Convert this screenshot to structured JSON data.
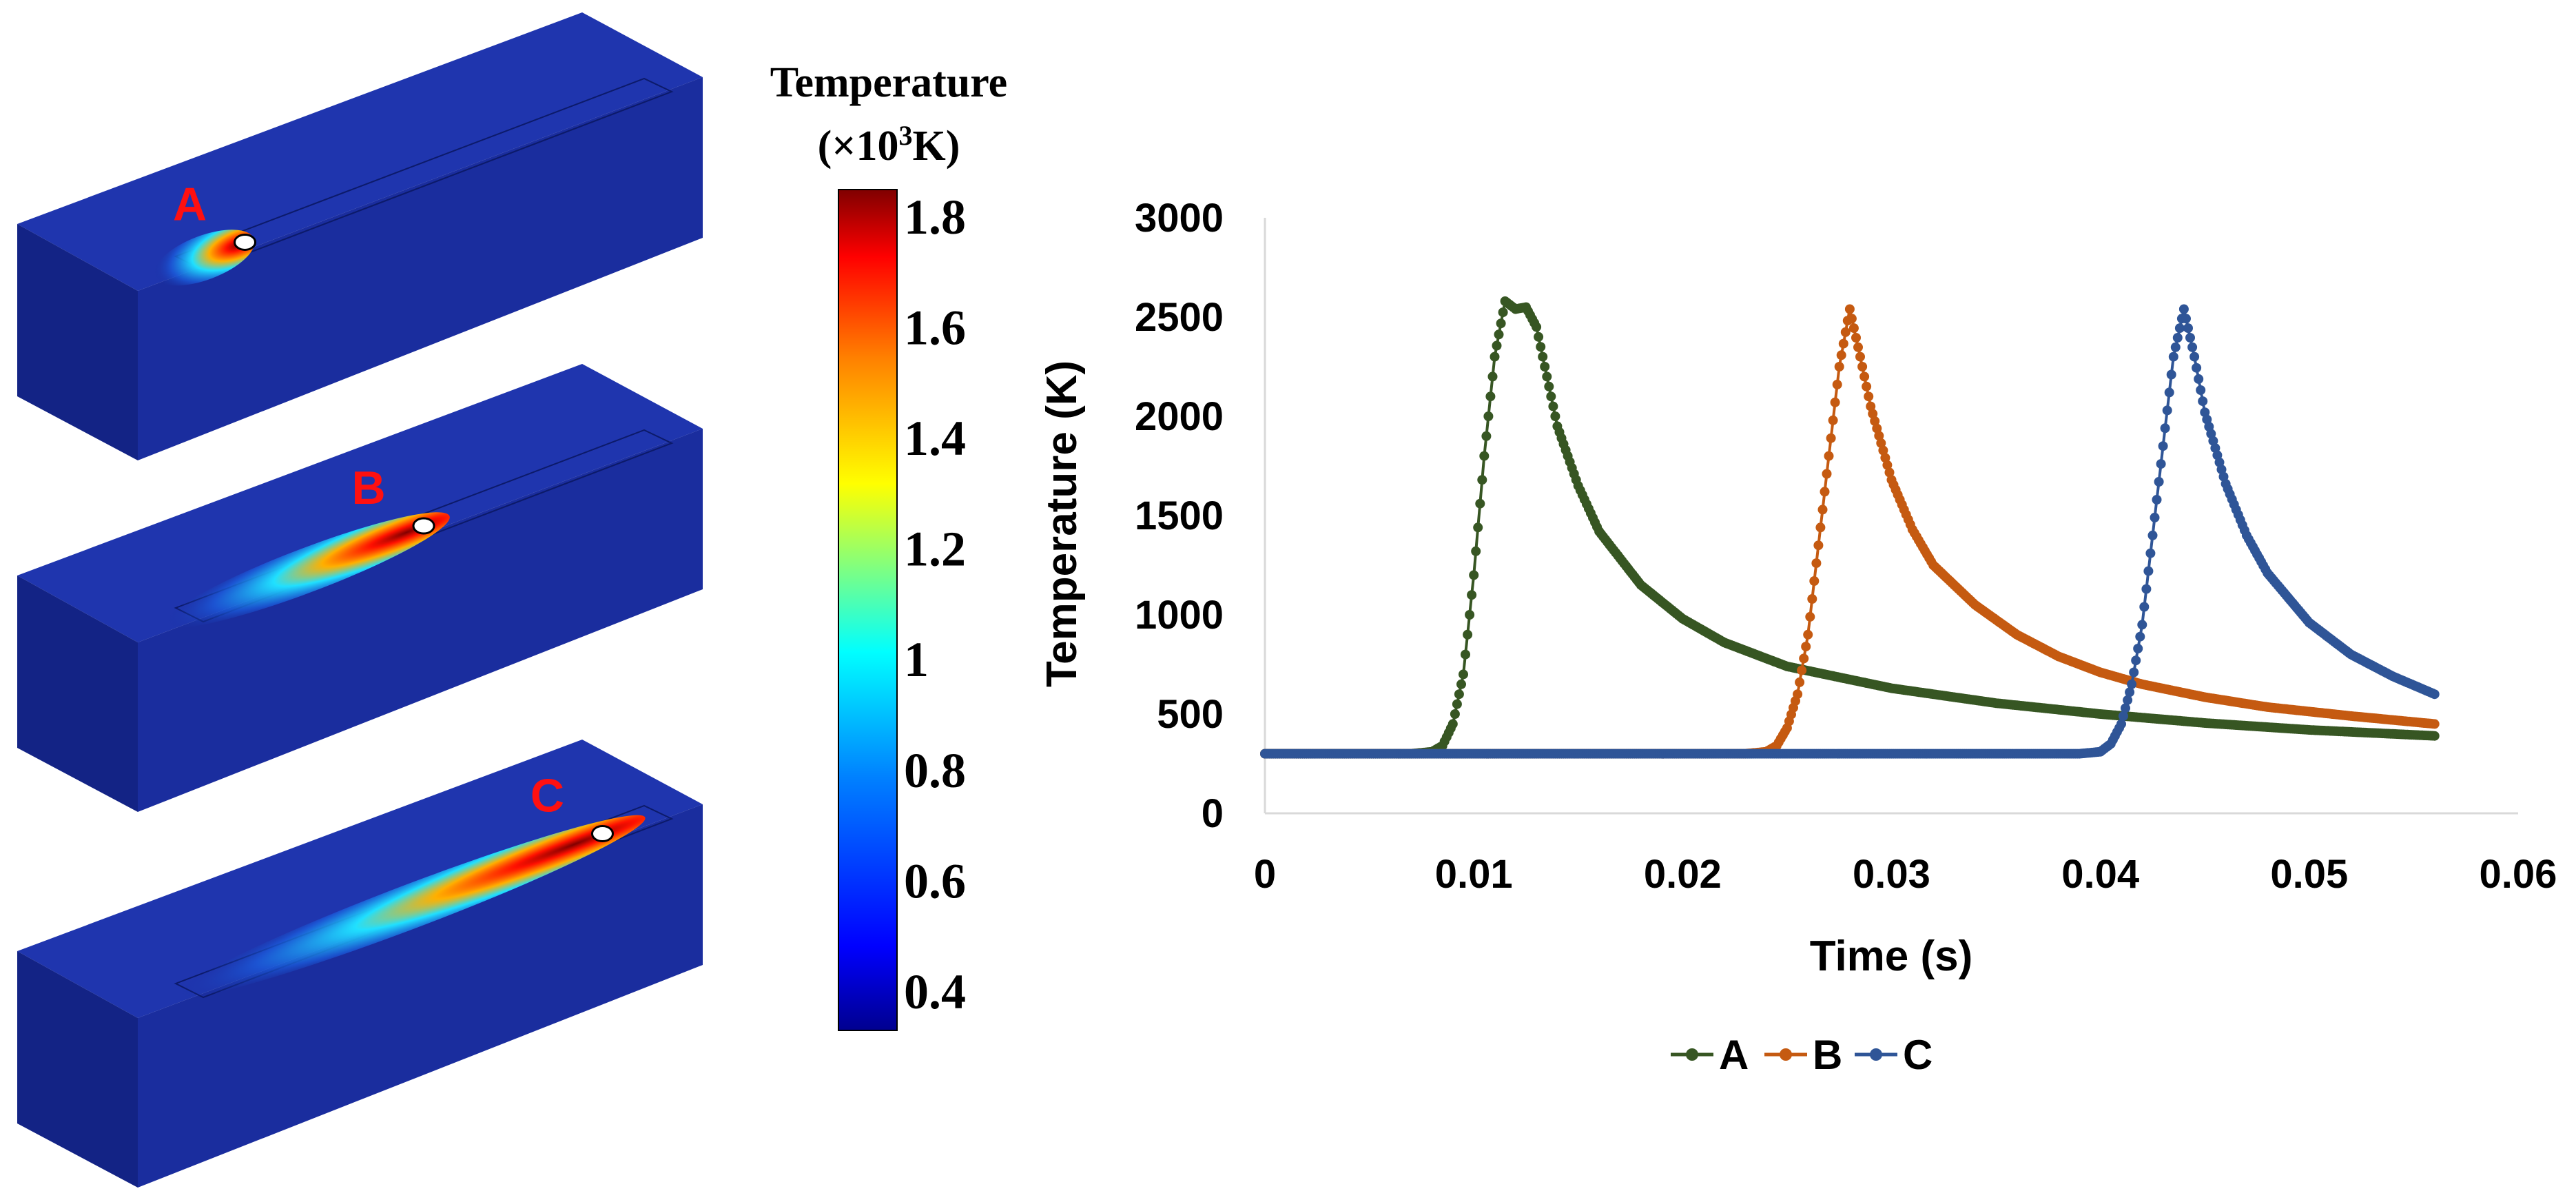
{
  "colorbar": {
    "title_line1": "Temperature",
    "title_line2_prefix": "(×10",
    "title_line2_sup": "3",
    "title_line2_suffix": "K)",
    "min": 0.33,
    "max": 1.85,
    "ticks": [
      "0.4",
      "0.6",
      "0.8",
      "1",
      "1.2",
      "1.4",
      "1.6",
      "1.8"
    ],
    "tick_values": [
      0.4,
      0.6,
      0.8,
      1.0,
      1.2,
      1.4,
      1.6,
      1.8
    ],
    "colormap": [
      "#00008f",
      "#0000ff",
      "#0080ff",
      "#00ffff",
      "#80ff80",
      "#ffff00",
      "#ff8000",
      "#ff0000",
      "#800000"
    ]
  },
  "blocks": [
    {
      "label": "A",
      "spot_progress": 0.21
    },
    {
      "label": "B",
      "spot_progress": 0.5
    },
    {
      "label": "C",
      "spot_progress": 0.79
    }
  ],
  "colors": {
    "block_base": "#1a2d9e",
    "block_top": "#1f35ae",
    "block_side": "#132385",
    "label_red": "#ff1010",
    "axis": "#d9d9d9"
  },
  "chart_data": {
    "type": "line",
    "xlabel": "Time (s)",
    "ylabel": "Temperature (K)",
    "xlim": [
      0,
      0.06
    ],
    "ylim": [
      0,
      3000
    ],
    "xticks": [
      0,
      0.01,
      0.02,
      0.03,
      0.04,
      0.05,
      0.06
    ],
    "xtick_labels": [
      "0",
      "0.01",
      "0.02",
      "0.03",
      "0.04",
      "0.05",
      "0.06"
    ],
    "yticks": [
      0,
      500,
      1000,
      1500,
      2000,
      2500,
      3000
    ],
    "ytick_labels": [
      "0",
      "500",
      "1000",
      "1500",
      "2000",
      "2500",
      "3000"
    ],
    "legend_position": "bottom",
    "series": [
      {
        "name": "A",
        "color": "#375623",
        "points": [
          [
            0,
            300
          ],
          [
            0.007,
            300
          ],
          [
            0.008,
            310
          ],
          [
            0.0085,
            340
          ],
          [
            0.009,
            450
          ],
          [
            0.0095,
            700
          ],
          [
            0.01,
            1200
          ],
          [
            0.0105,
            1800
          ],
          [
            0.011,
            2300
          ],
          [
            0.0115,
            2580
          ],
          [
            0.012,
            2540
          ],
          [
            0.0125,
            2550
          ],
          [
            0.013,
            2450
          ],
          [
            0.0135,
            2200
          ],
          [
            0.014,
            1950
          ],
          [
            0.015,
            1650
          ],
          [
            0.016,
            1420
          ],
          [
            0.018,
            1150
          ],
          [
            0.02,
            980
          ],
          [
            0.022,
            860
          ],
          [
            0.025,
            740
          ],
          [
            0.03,
            630
          ],
          [
            0.035,
            555
          ],
          [
            0.04,
            500
          ],
          [
            0.045,
            455
          ],
          [
            0.05,
            420
          ],
          [
            0.056,
            390
          ]
        ]
      },
      {
        "name": "B",
        "color": "#c55a11",
        "points": [
          [
            0,
            300
          ],
          [
            0.023,
            300
          ],
          [
            0.024,
            310
          ],
          [
            0.0245,
            340
          ],
          [
            0.025,
            430
          ],
          [
            0.0255,
            600
          ],
          [
            0.026,
            900
          ],
          [
            0.0265,
            1350
          ],
          [
            0.027,
            1800
          ],
          [
            0.0275,
            2250
          ],
          [
            0.028,
            2540
          ],
          [
            0.0285,
            2300
          ],
          [
            0.029,
            2050
          ],
          [
            0.03,
            1680
          ],
          [
            0.031,
            1430
          ],
          [
            0.032,
            1250
          ],
          [
            0.034,
            1050
          ],
          [
            0.036,
            900
          ],
          [
            0.038,
            790
          ],
          [
            0.04,
            710
          ],
          [
            0.042,
            650
          ],
          [
            0.045,
            585
          ],
          [
            0.048,
            535
          ],
          [
            0.052,
            490
          ],
          [
            0.056,
            450
          ]
        ]
      },
      {
        "name": "C",
        "color": "#2f5597",
        "points": [
          [
            0,
            300
          ],
          [
            0.039,
            300
          ],
          [
            0.04,
            310
          ],
          [
            0.0405,
            350
          ],
          [
            0.041,
            450
          ],
          [
            0.0415,
            650
          ],
          [
            0.042,
            950
          ],
          [
            0.0425,
            1400
          ],
          [
            0.043,
            1850
          ],
          [
            0.0435,
            2300
          ],
          [
            0.044,
            2540
          ],
          [
            0.0445,
            2300
          ],
          [
            0.045,
            2020
          ],
          [
            0.046,
            1660
          ],
          [
            0.047,
            1400
          ],
          [
            0.048,
            1210
          ],
          [
            0.05,
            960
          ],
          [
            0.052,
            800
          ],
          [
            0.054,
            690
          ],
          [
            0.056,
            600
          ]
        ]
      }
    ]
  }
}
